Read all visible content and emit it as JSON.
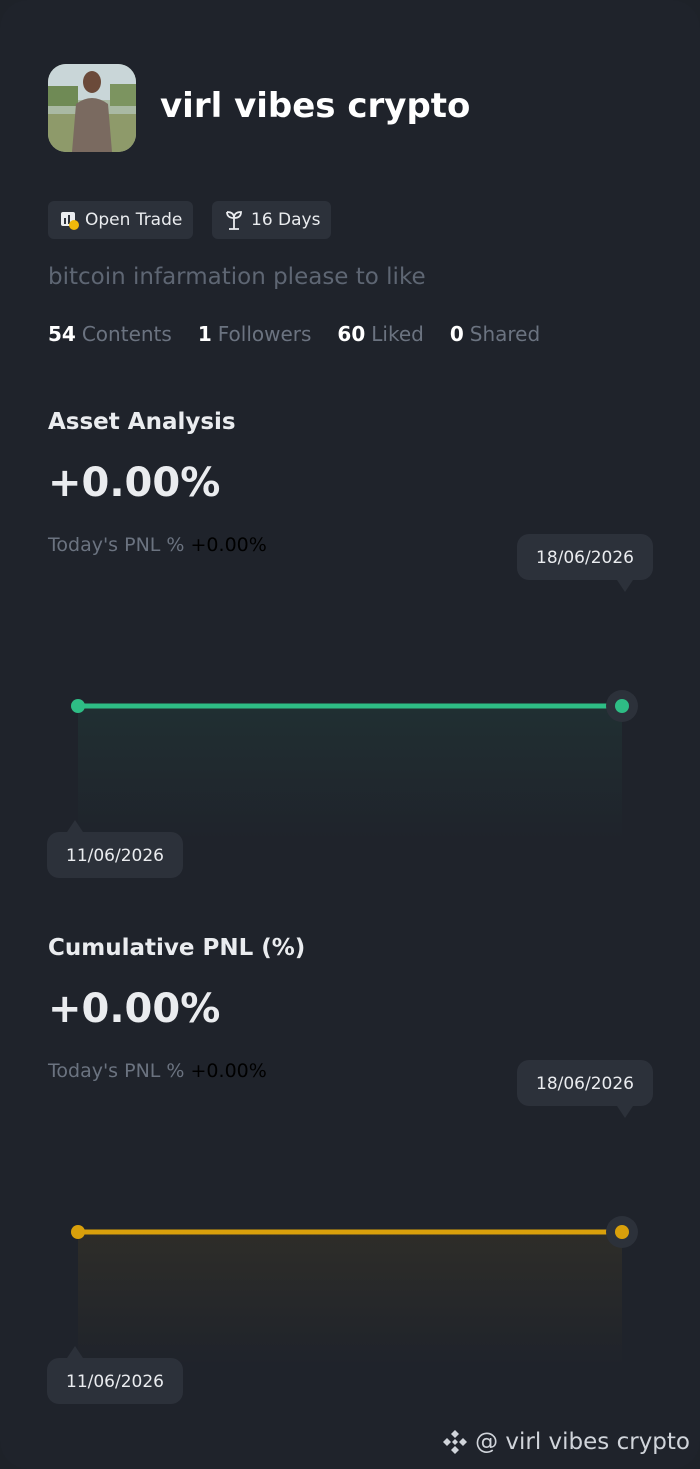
{
  "header": {
    "name": "virl vibes crypto",
    "badges": [
      "Open Trade",
      "16 Days"
    ],
    "bio": "bitcoin infarmation please to like",
    "stats": [
      {
        "value": 54,
        "label": "Contents"
      },
      {
        "value": 1,
        "label": "Followers"
      },
      {
        "value": 60,
        "label": "Liked"
      },
      {
        "value": 0,
        "label": "Shared"
      }
    ]
  },
  "charts": [
    {
      "title": "Asset Analysis",
      "value": "+0.00%",
      "pnl_label": "Today's PNL %",
      "pnl_value": "+0.00%",
      "dates": [
        "11/06/2026",
        "18/06/2026"
      ],
      "points": [
        0,
        0
      ],
      "color": "#2ebd85"
    },
    {
      "title": "Cumulative PNL (%)",
      "value": "+0.00%",
      "pnl_label": "Today's PNL %",
      "pnl_value": "+0.00%",
      "dates": [
        "11/06/2026",
        "18/06/2026"
      ],
      "points": [
        0,
        0
      ],
      "color": "#d9a00b"
    }
  ],
  "footer": "@ virl vibes crypto"
}
